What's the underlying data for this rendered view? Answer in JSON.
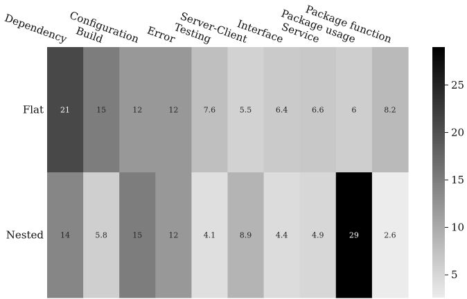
{
  "chart_data": {
    "type": "heatmap",
    "title": "",
    "xlabel": "",
    "ylabel": "",
    "categories": [
      "Dependency",
      "Configuration Build",
      "Error",
      "Server-Client Testing",
      "Interface",
      "Package usage Service",
      "Package function"
    ],
    "columns": [
      "Dependency",
      "Build",
      "Configuration",
      "Error",
      "Testing",
      "Server-Client",
      "Interface",
      "Service",
      "Package usage",
      "Package function"
    ],
    "rows": [
      "Flat",
      "Nested"
    ],
    "values": [
      [
        21,
        15,
        12,
        12,
        7.6,
        5.5,
        6.4,
        6.6,
        6,
        8.2
      ],
      [
        14,
        5.8,
        15,
        12,
        4.1,
        8.9,
        4.4,
        4.9,
        29,
        2.6
      ]
    ],
    "value_labels": [
      [
        "21",
        "15",
        "12",
        "12",
        "7.6",
        "5.5",
        "6.4",
        "6.6",
        "6",
        "8.2"
      ],
      [
        "14",
        "5.8",
        "15",
        "12",
        "4.1",
        "8.9",
        "4.4",
        "4.9",
        "29",
        "2.6"
      ]
    ],
    "colorbar": {
      "min": 2.6,
      "max": 29,
      "ticks": [
        5,
        10,
        15,
        20,
        25
      ],
      "tick_labels": [
        "5",
        "10",
        "15",
        "20",
        "25"
      ],
      "colormap": "Greys",
      "low_color": "#ececec",
      "high_color": "#000000"
    },
    "grid": false,
    "legend": "colorbar-right"
  }
}
